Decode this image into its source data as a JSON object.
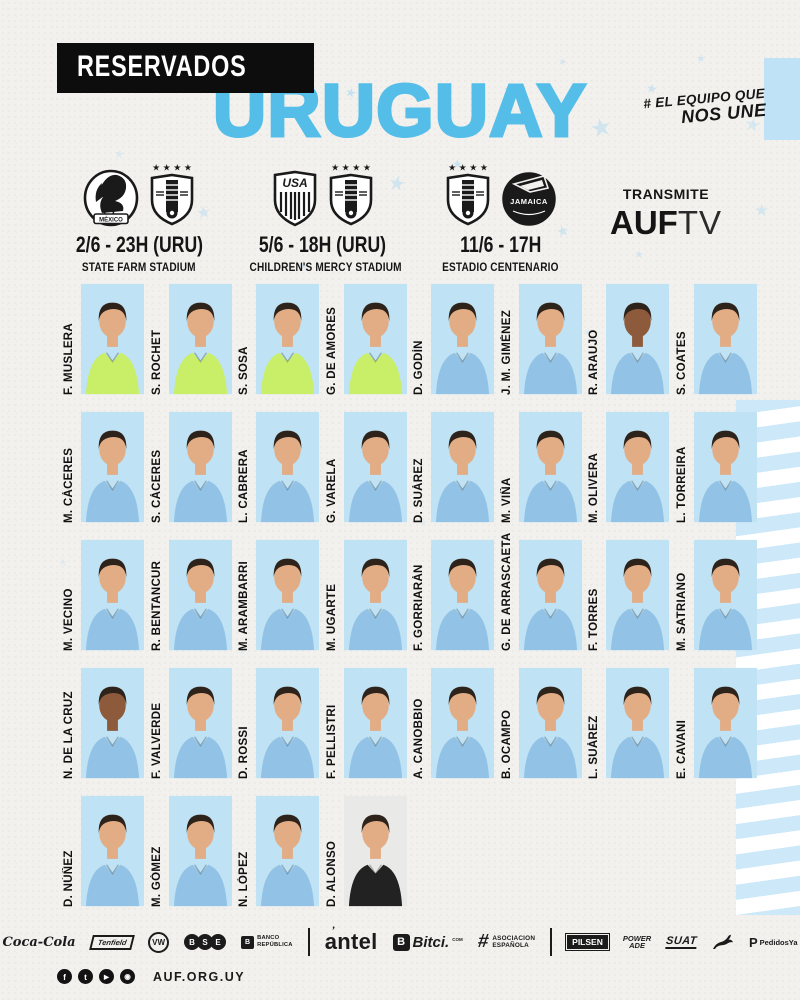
{
  "header": {
    "badge": "RESERVADOS",
    "title": "URUGUAY",
    "hashtag_line1": "# EL EQUIPO QUE",
    "hashtag_line2": "NOS UNE"
  },
  "fixtures": [
    {
      "home": "MÉXICO",
      "away": "URUGUAY",
      "datetime": "2/6 - 23H (URU)",
      "venue": "STATE FARM STADIUM"
    },
    {
      "home": "USA",
      "away": "URUGUAY",
      "datetime": "5/6 - 18H (URU)",
      "venue": "CHILDREN'S MERCY STADIUM"
    },
    {
      "home": "URUGUAY",
      "away": "JAMAICA",
      "datetime": "11/6 - 17H",
      "venue": "ESTADIO CENTENARIO"
    }
  ],
  "badge_labels": {
    "mexico": "MÉXICO",
    "usa": "USA",
    "jamaica": "JAMAICA",
    "uruguay_stars": "★ ★ ★ ★"
  },
  "broadcast": {
    "label": "TRANSMITE",
    "channel_bold": "AUF",
    "channel_light": "TV"
  },
  "squad": {
    "rows": [
      [
        {
          "name": "F. MUSLERA",
          "kit": "gk"
        },
        {
          "name": "S. ROCHET",
          "kit": "gk"
        },
        {
          "name": "S. SOSA",
          "kit": "gk"
        },
        {
          "name": "G. DE AMORES",
          "kit": "gk"
        },
        {
          "name": "D. GODÍN",
          "kit": "field"
        },
        {
          "name": "J. M. GIMÉNEZ",
          "kit": "field"
        },
        {
          "name": "R. ARAUJO",
          "kit": "field",
          "skin": "dark"
        },
        {
          "name": "S. COATES",
          "kit": "field"
        }
      ],
      [
        {
          "name": "M. CÁCERES",
          "kit": "field"
        },
        {
          "name": "S. CÁCERES",
          "kit": "field"
        },
        {
          "name": "L. CABRERA",
          "kit": "field"
        },
        {
          "name": "G. VARELA",
          "kit": "field"
        },
        {
          "name": "D. SUÁREZ",
          "kit": "field"
        },
        {
          "name": "M. VIÑA",
          "kit": "field"
        },
        {
          "name": "M. OLIVERA",
          "kit": "field"
        },
        {
          "name": "L. TORREIRA",
          "kit": "field"
        }
      ],
      [
        {
          "name": "M. VECINO",
          "kit": "field"
        },
        {
          "name": "R. BENTANCUR",
          "kit": "field"
        },
        {
          "name": "M. ARAMBARRI",
          "kit": "field"
        },
        {
          "name": "M. UGARTE",
          "kit": "field"
        },
        {
          "name": "F. GORRIARÁN",
          "kit": "field"
        },
        {
          "name": "G. DE ARRASCAETA",
          "kit": "field"
        },
        {
          "name": "F. TORRES",
          "kit": "field"
        },
        {
          "name": "M. SATRIANO",
          "kit": "field"
        }
      ],
      [
        {
          "name": "N. DE LA CRUZ",
          "kit": "field",
          "skin": "dark"
        },
        {
          "name": "F. VALVERDE",
          "kit": "field"
        },
        {
          "name": "D. ROSSI",
          "kit": "field"
        },
        {
          "name": "F. PELLISTRI",
          "kit": "field"
        },
        {
          "name": "A. CANOBBIO",
          "kit": "field"
        },
        {
          "name": "B. OCAMPO",
          "kit": "field"
        },
        {
          "name": "L. SUÁREZ",
          "kit": "field"
        },
        {
          "name": "E. CAVANI",
          "kit": "field"
        }
      ],
      [
        {
          "name": "D. NÚÑEZ",
          "kit": "field"
        },
        {
          "name": "M. GÓMEZ",
          "kit": "field"
        },
        {
          "name": "N. LÓPEZ",
          "kit": "field"
        },
        {
          "name": "D. ALONSO",
          "kit": "coach"
        }
      ]
    ]
  },
  "sponsors": {
    "cocacola": "Coca-Cola",
    "tenfield": "Tenfield",
    "vw": "VW",
    "bse_b": "B",
    "bse_s": "S",
    "bse_e": "E",
    "brou_mark": "B",
    "brou_line1": "BANCO",
    "brou_line2": "REPÚBLICA",
    "antel": "antel",
    "bitci_mark": "B",
    "bitci": "Bitci.",
    "bitci_com": "COM",
    "aes_hash": "#",
    "aes_line1": "ASOCIACION",
    "aes_line2": "ESPAÑOLA",
    "pilsen": "PILSEN",
    "powerade_line1": "POWER",
    "powerade_line2": "ADE",
    "suat": "SUAT",
    "pedidosya_mark": "P",
    "pedidosya": "PedidosYa"
  },
  "footer": {
    "site": "AUF.ORG.UY",
    "social_icons": [
      "facebook-icon",
      "twitter-icon",
      "youtube-icon",
      "instagram-icon"
    ],
    "social_glyphs": [
      "f",
      "t",
      "▶",
      "◉"
    ]
  },
  "colors": {
    "title_blue": "#54bee9",
    "photo_bg": "#bfe2f4",
    "gk_kit": "#c9ee67",
    "field_kit": "#92c3e6",
    "coach_kit": "#222222",
    "ink": "#151515",
    "star_blue": "#a9d8f2",
    "stripe_blue": "#cde8f8"
  }
}
